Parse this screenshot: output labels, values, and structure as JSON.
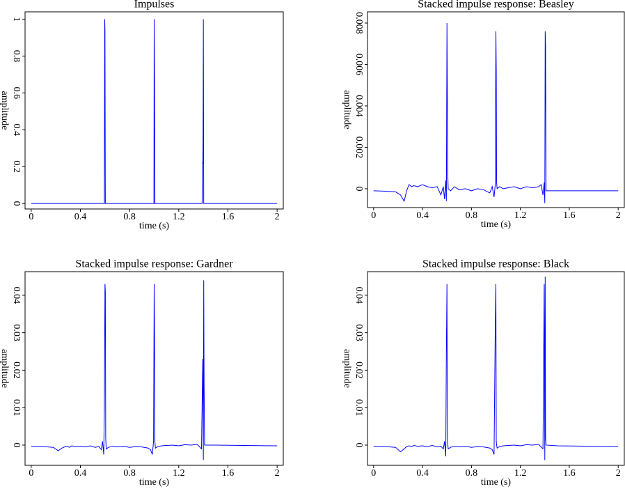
{
  "chart_data": [
    {
      "type": "line",
      "title": "Impulses",
      "xlabel": "time (s)",
      "ylabel": "amplitude",
      "color": "#0000ff",
      "xlim": [
        -0.05,
        2.05
      ],
      "ylim": [
        -0.03,
        1.04
      ],
      "xticks": [
        0,
        0.4,
        0.8,
        1.2,
        1.6,
        2
      ],
      "yticks": [
        0,
        0.2,
        0.4,
        0.6,
        0.8,
        1
      ],
      "x": [
        0,
        0.595,
        0.598,
        0.6,
        0.603,
        0.606,
        0.995,
        0.998,
        1.0,
        1.003,
        1.006,
        1.39,
        1.393,
        1.396,
        1.398,
        1.4,
        1.403,
        2
      ],
      "values": [
        0,
        0,
        1,
        0.94,
        0,
        0,
        0,
        0,
        1,
        0.66,
        0,
        0,
        0.22,
        0.22,
        0.38,
        1,
        0,
        0
      ]
    },
    {
      "type": "line",
      "title": "Stacked impulse response: Beasley",
      "xlabel": "time (s)",
      "ylabel": "amplitude",
      "color": "#0000ff",
      "xlim": [
        -0.05,
        2.05
      ],
      "ylim": [
        -0.00091,
        0.00854
      ],
      "xticks": [
        0,
        0.4,
        0.8,
        1.2,
        1.6,
        2
      ],
      "yticks": [
        0,
        0.002,
        0.004,
        0.006,
        0.008
      ],
      "x": [
        0,
        0.1,
        0.18,
        0.22,
        0.25,
        0.27,
        0.29,
        0.31,
        0.33,
        0.36,
        0.4,
        0.44,
        0.48,
        0.52,
        0.55,
        0.57,
        0.58,
        0.59,
        0.595,
        0.6,
        0.603,
        0.606,
        0.61,
        0.63,
        0.66,
        0.7,
        0.75,
        0.8,
        0.85,
        0.9,
        0.95,
        0.97,
        0.985,
        0.995,
        1.0,
        1.003,
        1.006,
        1.01,
        1.03,
        1.06,
        1.1,
        1.15,
        1.2,
        1.25,
        1.3,
        1.35,
        1.37,
        1.385,
        1.395,
        1.4,
        1.403,
        1.406,
        1.41,
        1.5,
        2
      ],
      "values": [
        -0.0001,
        -0.00012,
        -0.00015,
        -0.0003,
        -0.0006,
        -0.0001,
        0.0002,
        0.0001,
        0.00015,
        0.0001,
        0.0002,
        0.0001,
        5e-05,
        0.0001,
        -0.0003,
        0.0001,
        -0.0005,
        0.0004,
        -0.0006,
        0.008,
        0.0045,
        0.0008,
        0,
        -0.0001,
        0.0001,
        -5e-05,
        0,
        -0.0001,
        0,
        -5e-05,
        -0.0002,
        0.0001,
        -0.0004,
        0.0002,
        0.0076,
        0.0057,
        0.0003,
        0,
        0.0001,
        0,
        5e-05,
        0.0001,
        0,
        0.0001,
        5e-05,
        0.0001,
        0.0002,
        -0.0003,
        0.0003,
        -0.0007,
        0.0076,
        0.0069,
        -0.0001,
        -0.0001,
        -0.0001
      ]
    },
    {
      "type": "line",
      "title": "Stacked impulse response: Gardner",
      "xlabel": "time (s)",
      "ylabel": "amplitude",
      "color": "#0000ff",
      "xlim": [
        -0.05,
        2.05
      ],
      "ylim": [
        -0.0054,
        0.0463
      ],
      "xticks": [
        0,
        0.4,
        0.8,
        1.2,
        1.6,
        2
      ],
      "yticks": [
        0,
        0.01,
        0.02,
        0.03,
        0.04
      ],
      "x": [
        0,
        0.1,
        0.18,
        0.22,
        0.25,
        0.27,
        0.29,
        0.31,
        0.33,
        0.36,
        0.4,
        0.44,
        0.48,
        0.52,
        0.55,
        0.57,
        0.58,
        0.59,
        0.595,
        0.6,
        0.603,
        0.606,
        0.61,
        0.63,
        0.66,
        0.7,
        0.75,
        0.8,
        0.85,
        0.9,
        0.95,
        0.97,
        0.985,
        0.995,
        1.0,
        1.003,
        1.006,
        1.01,
        1.03,
        1.06,
        1.1,
        1.15,
        1.2,
        1.25,
        1.3,
        1.35,
        1.37,
        1.385,
        1.395,
        1.4,
        1.403,
        1.406,
        1.41,
        1.5,
        2
      ],
      "values": [
        -0.0003,
        -0.0004,
        -0.0006,
        -0.0015,
        -0.0008,
        -0.0005,
        -0.0003,
        -0.0006,
        -0.0002,
        -0.0004,
        -0.0003,
        -0.0005,
        -0.0002,
        -0.0006,
        -0.0004,
        -0.0012,
        0.001,
        -0.0025,
        0.01,
        0.043,
        0.041,
        0.002,
        -0.001,
        -0.0006,
        -0.0003,
        -0.0005,
        -0.0003,
        -0.0006,
        -0.0004,
        -0.0005,
        -0.0008,
        -0.0012,
        -0.0025,
        0.001,
        0.043,
        0.029,
        0.001,
        -0.0008,
        -0.0004,
        -0.0002,
        -0.0001,
        0,
        -0.0002,
        0.0001,
        0,
        0.0002,
        -0.0005,
        -0.001,
        0.023,
        -0.004,
        0.044,
        0.017,
        0,
        0,
        -0.0002
      ]
    },
    {
      "type": "line",
      "title": "Stacked impulse response: Black",
      "xlabel": "time (s)",
      "ylabel": "amplitude",
      "color": "#0000ff",
      "xlim": [
        -0.05,
        2.05
      ],
      "ylim": [
        -0.0054,
        0.0463
      ],
      "xticks": [
        0,
        0.4,
        0.8,
        1.2,
        1.6,
        2
      ],
      "yticks": [
        0,
        0.01,
        0.02,
        0.03,
        0.04
      ],
      "x": [
        0,
        0.1,
        0.18,
        0.22,
        0.25,
        0.27,
        0.29,
        0.31,
        0.33,
        0.36,
        0.4,
        0.44,
        0.48,
        0.52,
        0.55,
        0.57,
        0.58,
        0.59,
        0.595,
        0.6,
        0.603,
        0.606,
        0.61,
        0.63,
        0.66,
        0.7,
        0.75,
        0.8,
        0.85,
        0.9,
        0.95,
        0.97,
        0.985,
        0.995,
        1.0,
        1.003,
        1.006,
        1.01,
        1.03,
        1.06,
        1.1,
        1.15,
        1.2,
        1.25,
        1.3,
        1.35,
        1.37,
        1.385,
        1.395,
        1.4,
        1.403,
        1.406,
        1.41,
        1.5,
        2
      ],
      "values": [
        -0.0003,
        -0.0004,
        -0.0006,
        -0.0018,
        -0.001,
        -0.0004,
        -0.0002,
        -0.0004,
        -0.0001,
        -0.0003,
        -0.0002,
        -0.0004,
        -0.0001,
        -0.0005,
        -0.0003,
        -0.001,
        0.001,
        -0.003,
        0.025,
        0.043,
        0.002,
        0.0005,
        -0.001,
        -0.0006,
        -0.0003,
        -0.0005,
        -0.0003,
        -0.0006,
        -0.0004,
        -0.0005,
        -0.0008,
        -0.0012,
        -0.0025,
        0.032,
        0.043,
        0.001,
        0,
        -0.0008,
        -0.0004,
        -0.0002,
        -0.0001,
        0,
        -0.0002,
        0.0001,
        0,
        0.0002,
        -0.0005,
        -0.001,
        0.043,
        -0.004,
        0.045,
        0.002,
        0,
        -0.0002,
        -0.0004
      ]
    }
  ]
}
